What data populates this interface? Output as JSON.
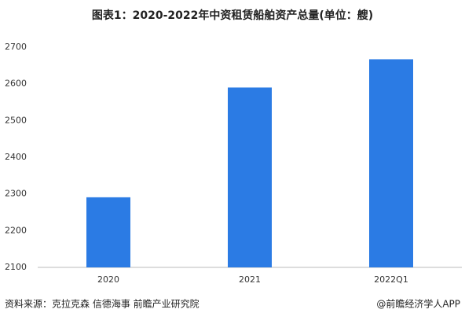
{
  "chart_data": {
    "type": "bar",
    "title": "图表1：2020-2022年中资租赁船舶资产总量(单位：艘)",
    "categories": [
      "2020",
      "2021",
      "2022Q1"
    ],
    "values": [
      2291,
      2590,
      2667
    ],
    "color": "#2b7be4",
    "ylim": [
      2100,
      2700
    ],
    "yticks": [
      2100,
      2200,
      2300,
      2400,
      2500,
      2600,
      2700
    ],
    "grid": false,
    "source": "资料来源：克拉克森 信德海事 前瞻产业研究院",
    "credit": "@前瞻经济学人APP"
  }
}
